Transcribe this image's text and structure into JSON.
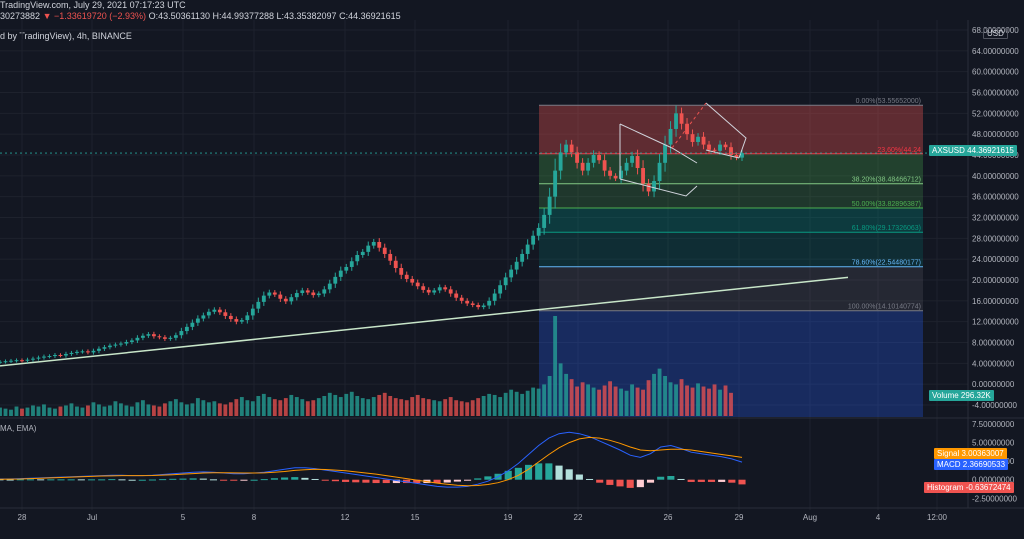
{
  "header": {
    "line1": "TradingView.com, July 29, 2021 07:17:23 UTC",
    "line2_prefix": "30273882",
    "line2_change": "▼ −1.33619720 (−2.93%)",
    "line2_ohlc": "O:43.50361130 H:44.99377288 L:43.35382097 C:44.36921615",
    "line3": "d by TradingView), 4h, BINANCE"
  },
  "macd_label": "MA, EMA)",
  "price_axis": {
    "currency": "USD",
    "ticks": [
      "68.00000000",
      "64.00000000",
      "60.00000000",
      "56.00000000",
      "52.00000000",
      "48.00000000",
      "44.00000000",
      "40.00000000",
      "36.00000000",
      "32.00000000",
      "28.00000000",
      "24.00000000",
      "20.00000000",
      "16.00000000",
      "12.00000000",
      "8.00000000",
      "4.00000000",
      "0.00000000",
      "-4.00000000"
    ]
  },
  "macd_axis": {
    "ticks": [
      "7.50000000",
      "5.00000000",
      "2.50000000",
      "0.00000000",
      "-2.50000000"
    ]
  },
  "time_axis": {
    "ticks": [
      "28",
      "Jul",
      "5",
      "8",
      "12",
      "15",
      "19",
      "22",
      "26",
      "29",
      "Aug",
      "4",
      "12:00"
    ]
  },
  "tags": {
    "price": {
      "label": "AXSUSD",
      "value": "44.36921615",
      "color": "#26a69a"
    },
    "volume": {
      "label": "Volume",
      "value": "296.32K",
      "color": "#26a69a"
    },
    "signal": {
      "label": "Signal",
      "value": "3.00363007",
      "color": "#ff9800"
    },
    "macd": {
      "label": "MACD",
      "value": "2.36690533",
      "color": "#2962ff"
    },
    "histogram": {
      "label": "Histogram",
      "value": "-0.63672474",
      "color": "#ef5350"
    }
  },
  "fib_levels": [
    {
      "label": "0.00%(53.55652000)",
      "value": 53.55652
    },
    {
      "label": "23.60%(44.24",
      "value": 44.24
    },
    {
      "label": "38.20%(38.48466712)",
      "value": 38.48466712
    },
    {
      "label": "50.00%(33.82896387)",
      "value": 33.82896387
    },
    {
      "label": "61.80%(29.17326063)",
      "value": 29.17326063
    },
    {
      "label": "78.60%(22.54480177)",
      "value": 22.54480177
    },
    {
      "label": "100.00%(14.10140774)",
      "value": 14.10140774
    }
  ],
  "chart_data": {
    "type": "candlestick",
    "symbol": "AXSUSD",
    "interval": "4h",
    "price_range": [
      -4,
      68
    ],
    "close_series": [
      4.3,
      4.4,
      4.5,
      4.6,
      4.5,
      4.7,
      4.9,
      5.1,
      5.3,
      5.4,
      5.6,
      5.5,
      5.8,
      6.0,
      6.2,
      6.3,
      6.1,
      6.4,
      6.8,
      7.1,
      7.4,
      7.6,
      7.8,
      8.1,
      8.4,
      8.9,
      9.3,
      9.6,
      9.2,
      9.0,
      8.7,
      8.9,
      9.4,
      10.2,
      11.0,
      11.8,
      12.6,
      13.2,
      13.9,
      14.3,
      13.8,
      13.1,
      12.5,
      12.0,
      12.3,
      13.2,
      14.5,
      15.8,
      17.0,
      17.6,
      17.2,
      16.4,
      15.9,
      16.7,
      17.5,
      18.0,
      17.6,
      17.1,
      17.4,
      18.2,
      19.3,
      20.6,
      21.8,
      22.5,
      23.6,
      24.8,
      25.4,
      26.6,
      27.3,
      26.2,
      25.0,
      23.7,
      22.3,
      21.0,
      20.2,
      19.5,
      18.8,
      18.1,
      17.6,
      18.0,
      18.6,
      18.2,
      17.4,
      16.6,
      16.0,
      15.5,
      15.2,
      14.8,
      15.1,
      16.0,
      17.4,
      19.0,
      20.5,
      22.0,
      23.5,
      25.0,
      26.8,
      28.5,
      30.0,
      32.5,
      36.0,
      41.0,
      44.5,
      46.0,
      44.5,
      42.5,
      41.0,
      42.5,
      44.0,
      43.0,
      41.0,
      40.0,
      39.5,
      41.0,
      42.5,
      43.8,
      41.5,
      38.5,
      37.0,
      39.0,
      42.5,
      46.0,
      49.0,
      52.0,
      50.0,
      48.0,
      46.5,
      47.5,
      46.0,
      45.0,
      44.8,
      46.0,
      45.5,
      44.0,
      43.5,
      44.37
    ],
    "volume_series": [
      8,
      7,
      6,
      9,
      7,
      8,
      10,
      9,
      11,
      8,
      7,
      9,
      10,
      12,
      9,
      8,
      10,
      13,
      11,
      9,
      10,
      14,
      12,
      10,
      9,
      13,
      15,
      11,
      10,
      9,
      12,
      14,
      16,
      13,
      11,
      12,
      17,
      15,
      13,
      14,
      12,
      11,
      13,
      16,
      18,
      15,
      14,
      19,
      21,
      18,
      16,
      15,
      17,
      20,
      18,
      16,
      14,
      15,
      17,
      19,
      22,
      20,
      18,
      21,
      23,
      19,
      17,
      16,
      18,
      20,
      22,
      19,
      17,
      16,
      15,
      18,
      20,
      17,
      16,
      15,
      14,
      16,
      18,
      15,
      14,
      13,
      15,
      17,
      19,
      21,
      20,
      18,
      22,
      25,
      23,
      21,
      24,
      27,
      26,
      30,
      38,
      95,
      50,
      40,
      35,
      28,
      32,
      30,
      27,
      25,
      29,
      33,
      28,
      26,
      24,
      30,
      27,
      25,
      34,
      40,
      45,
      38,
      32,
      30,
      35,
      29,
      27,
      31,
      28,
      26,
      30,
      25,
      29,
      22
    ],
    "macd_range": [
      -3,
      7.5
    ],
    "macd_series": [
      0.1,
      0.1,
      0.15,
      0.2,
      0.25,
      0.3,
      0.35,
      0.4,
      0.45,
      0.5,
      0.55,
      0.6,
      0.6,
      0.55,
      0.55,
      0.6,
      0.7,
      0.8,
      0.9,
      1.0,
      1.05,
      1.0,
      0.9,
      0.8,
      0.8,
      0.9,
      1.0,
      1.2,
      1.4,
      1.6,
      1.6,
      1.5,
      1.3,
      1.1,
      0.9,
      0.7,
      0.5,
      0.3,
      0.1,
      -0.1,
      -0.3,
      -0.5,
      -0.7,
      -0.9,
      -1.0,
      -1.0,
      -0.9,
      -0.6,
      -0.2,
      0.4,
      1.2,
      2.2,
      3.4,
      4.6,
      5.6,
      6.2,
      6.4,
      6.2,
      5.8,
      5.2,
      4.6,
      4.0,
      3.3,
      3.0,
      3.5,
      4.4,
      4.6,
      4.2,
      3.7,
      3.5,
      3.3,
      3.1,
      2.8,
      2.37
    ],
    "signal_series": [
      0.05,
      0.08,
      0.1,
      0.15,
      0.2,
      0.25,
      0.3,
      0.35,
      0.4,
      0.45,
      0.5,
      0.52,
      0.55,
      0.55,
      0.55,
      0.57,
      0.62,
      0.68,
      0.75,
      0.82,
      0.9,
      0.95,
      0.95,
      0.92,
      0.9,
      0.9,
      0.92,
      1.0,
      1.1,
      1.25,
      1.35,
      1.4,
      1.38,
      1.3,
      1.2,
      1.05,
      0.9,
      0.75,
      0.55,
      0.35,
      0.15,
      -0.05,
      -0.25,
      -0.45,
      -0.62,
      -0.75,
      -0.8,
      -0.78,
      -0.65,
      -0.4,
      0.0,
      0.6,
      1.4,
      2.4,
      3.4,
      4.3,
      5.0,
      5.5,
      5.7,
      5.6,
      5.3,
      4.9,
      4.4,
      4.0,
      3.9,
      4.0,
      4.1,
      4.1,
      4.0,
      3.8,
      3.6,
      3.4,
      3.2,
      3.0
    ]
  }
}
